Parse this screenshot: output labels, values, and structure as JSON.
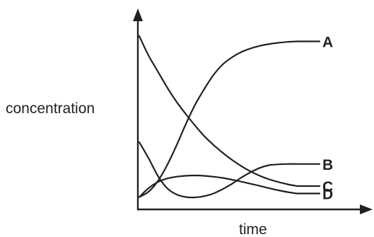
{
  "chart_data": {
    "type": "line",
    "xlabel": "time",
    "ylabel": "concentration",
    "xlim": [
      0,
      10
    ],
    "ylim": [
      0,
      10
    ],
    "grid": false,
    "series": [
      {
        "name": "A",
        "x": [
          0,
          0.5,
          1,
          1.5,
          2,
          2.5,
          3,
          3.5,
          4,
          4.5,
          5,
          5.5,
          6,
          6.5,
          7,
          7.5,
          8,
          8.5
        ],
        "y": [
          0.7,
          1.0,
          1.6,
          2.5,
          3.6,
          4.8,
          5.9,
          6.8,
          7.6,
          8.2,
          8.6,
          8.9,
          9.1,
          9.25,
          9.35,
          9.42,
          9.47,
          9.5
        ]
      },
      {
        "name": "B",
        "x": [
          0,
          0.5,
          1,
          1.5,
          2,
          2.5,
          3,
          3.5,
          4,
          4.5,
          5,
          5.5,
          6,
          6.5,
          7,
          7.5,
          8,
          8.5
        ],
        "y": [
          3.8,
          2.9,
          1.9,
          1.2,
          0.85,
          0.7,
          0.68,
          0.75,
          0.9,
          1.15,
          1.45,
          1.8,
          2.1,
          2.35,
          2.5,
          2.55,
          2.57,
          2.57
        ]
      },
      {
        "name": "C",
        "x": [
          0,
          0.5,
          1,
          1.5,
          2,
          2.5,
          3,
          3.5,
          4,
          4.5,
          5,
          5.5,
          6,
          6.5,
          7,
          7.5,
          8,
          8.5
        ],
        "y": [
          9.8,
          8.7,
          7.8,
          6.9,
          6.1,
          5.4,
          4.75,
          4.15,
          3.65,
          3.2,
          2.8,
          2.45,
          2.15,
          1.9,
          1.7,
          1.55,
          1.42,
          1.32
        ]
      },
      {
        "name": "D",
        "x": [
          0,
          0.5,
          1,
          1.5,
          2,
          2.5,
          3,
          3.5,
          4,
          4.5,
          5,
          5.5,
          6,
          6.5,
          7,
          7.5,
          8,
          8.5
        ],
        "y": [
          0.7,
          1.2,
          1.55,
          1.75,
          1.85,
          1.9,
          1.92,
          1.9,
          1.85,
          1.78,
          1.68,
          1.57,
          1.45,
          1.33,
          1.2,
          1.08,
          0.98,
          0.9
        ]
      }
    ]
  }
}
